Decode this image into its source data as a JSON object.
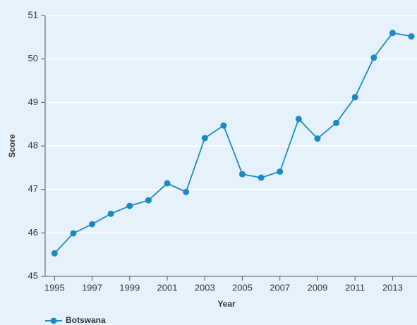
{
  "chart_data": {
    "type": "line",
    "x_label": "Year",
    "y_label": "Score",
    "x": [
      1995,
      1996,
      1997,
      1998,
      1999,
      2000,
      2001,
      2002,
      2003,
      2004,
      2005,
      2006,
      2007,
      2008,
      2009,
      2010,
      2011,
      2012,
      2013,
      2014
    ],
    "series": [
      {
        "name": "Botswana",
        "color": "#1a8ac6",
        "values": [
          45.53,
          45.99,
          46.2,
          46.44,
          46.62,
          46.75,
          47.14,
          46.94,
          48.18,
          48.47,
          47.35,
          47.27,
          47.41,
          48.62,
          48.17,
          48.53,
          49.12,
          50.03,
          50.6,
          50.52
        ]
      }
    ],
    "xlim": [
      1994.5,
      2014.3
    ],
    "xticks": [
      1995,
      1997,
      1999,
      2001,
      2003,
      2005,
      2007,
      2009,
      2011,
      2013
    ],
    "ylim": [
      45,
      51
    ],
    "yticks": [
      45,
      46,
      47,
      48,
      49,
      50,
      51
    ],
    "grid": true
  }
}
